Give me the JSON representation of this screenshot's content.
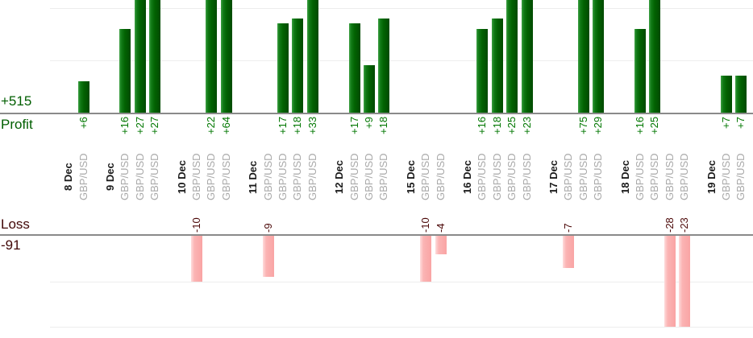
{
  "chart_data": {
    "type": "bar",
    "description": "Daily trade results per instrument: profit bars rise from the upper zero axis, loss bars hang from the lower zero axis; all value labels and category labels are rotated 90 degrees",
    "instrument": "GBP/USD",
    "profit": {
      "axis_label": "Profit",
      "total_label": "+515",
      "total": 515,
      "bar_color": "#026202",
      "value_label_color": "#007700",
      "gridline_values": [
        10,
        20
      ],
      "visible_range": [
        0,
        22
      ],
      "note": "bars taller than ~22 are clipped by the top edge of the screenshot"
    },
    "loss": {
      "axis_label": "Loss",
      "total_label": "-91",
      "total": -91,
      "bar_color": "#f9a4a4",
      "value_label_color": "#4c0808",
      "gridline_values": [
        -10,
        -20
      ],
      "visible_range": [
        0,
        -20
      ],
      "note": "bars deeper than -20 are clipped at the bottom gridline"
    },
    "groups": [
      {
        "date": "8 Dec",
        "trades": [
          6
        ]
      },
      {
        "date": "9 Dec",
        "trades": [
          16,
          27,
          27
        ]
      },
      {
        "date": "10 Dec",
        "trades": [
          -10,
          22,
          64
        ]
      },
      {
        "date": "11 Dec",
        "trades": [
          -9,
          17,
          18,
          33
        ]
      },
      {
        "date": "12 Dec",
        "trades": [
          17,
          9,
          18
        ]
      },
      {
        "date": "15 Dec",
        "trades": [
          -10,
          -4
        ]
      },
      {
        "date": "16 Dec",
        "trades": [
          16,
          18,
          25,
          23
        ]
      },
      {
        "date": "17 Dec",
        "trades": [
          -7,
          75,
          29
        ]
      },
      {
        "date": "18 Dec",
        "trades": [
          16,
          25,
          -28,
          -23
        ]
      },
      {
        "date": "19 Dec",
        "trades": [
          7,
          7
        ]
      }
    ],
    "legend": "none",
    "grid": "horizontal-only"
  }
}
